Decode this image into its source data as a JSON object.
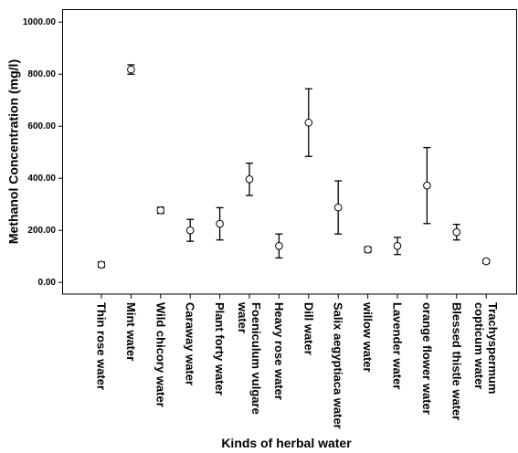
{
  "chart_data": {
    "type": "errorbar",
    "x_label": "Kinds of herbal water",
    "y_label": "Methanol Concentration (mg/l)",
    "categories": [
      "Thin rose water",
      "Mint water",
      "Wild chicory water",
      "Caraway water",
      "Plant forty water",
      "Foeniculum vulgare water",
      "Heavy rose water",
      "Dill water",
      "Salix aegyptiaca water",
      "willow water",
      "Lavender water",
      "orange flower water",
      "Blessed thistle water",
      "Trachyspermum copticum water"
    ],
    "values": [
      68,
      818,
      277,
      200,
      225,
      396,
      140,
      614,
      288,
      126,
      140,
      372,
      193,
      81
    ],
    "errors": [
      10,
      18,
      12,
      42,
      62,
      62,
      46,
      130,
      102,
      10,
      33,
      146,
      30,
      7
    ],
    "color": "#000000",
    "ylim": [
      -45,
      1050
    ],
    "yticks": [
      {
        "value": 0,
        "label": "0.00"
      },
      {
        "value": 200,
        "label": "200.00"
      },
      {
        "value": 400,
        "label": "400.00"
      },
      {
        "value": 600,
        "label": "600.00"
      },
      {
        "value": 800,
        "label": "800.00"
      },
      {
        "value": 1000,
        "label": "1000.00"
      }
    ],
    "grid": false
  }
}
